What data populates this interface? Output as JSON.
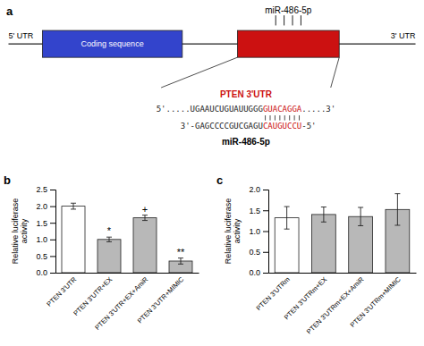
{
  "chart_data": [
    {
      "type": "diagram",
      "title": "a",
      "annotations": [
        "5' UTR",
        "3' UTR",
        "Coding sequence",
        "miR-486-5p",
        "PTEN 3'UTR",
        "5'.....UGAAUCUGUAUUGGG",
        "GUACAGGA",
        ".....3'",
        "3'-GAGCCCCGUCGAGU",
        "CAUGUCCU",
        "-5'",
        "miR-486-5p"
      ],
      "colors": [
        "#3344cc",
        "#cc1111"
      ]
    },
    {
      "type": "bar",
      "title": "b",
      "categories": [
        "PTEN 3'UTR",
        "PTEN 3'UTR+EX",
        "PTEN 3'UTR+EX+AmiR",
        "PTEN 3'UTR+MIMIC"
      ],
      "values": [
        2.0,
        1.0,
        1.65,
        0.35
      ],
      "errors": [
        0.09,
        0.07,
        0.08,
        0.09
      ],
      "colors": [
        "white",
        "#b8b8b8",
        "#b8b8b8",
        "#b8b8b8"
      ],
      "ylabel": "Relative luciferase\nactivity",
      "ylim": [
        0,
        2.5
      ],
      "yticks": [
        {
          "value": 0,
          "label": "0.0"
        },
        0.5,
        {
          "value": 1,
          "label": "1.0"
        },
        1.5,
        {
          "value": 2,
          "label": "2.0"
        },
        2.5
      ],
      "annotations": [
        null,
        "*",
        "+",
        "**"
      ]
    },
    {
      "type": "bar",
      "title": "c",
      "categories": [
        "PTEN 3'UTRm",
        "PTEN 3'UTRm+EX",
        "PTEN 3'UTRm+EX+AmiR",
        "PTEN 3'UTRm+MIMIC"
      ],
      "values": [
        1.32,
        1.4,
        1.35,
        1.52
      ],
      "errors": [
        0.27,
        0.18,
        0.22,
        0.38
      ],
      "colors": [
        "white",
        "#b8b8b8",
        "#b8b8b8",
        "#b8b8b8"
      ],
      "ylabel": "Relative luciferase\nactivity",
      "ylim": [
        0,
        2.0
      ],
      "yticks": [
        {
          "value": 0,
          "label": "0.0"
        },
        0.5,
        {
          "value": 1,
          "label": "1.0"
        },
        1.5,
        {
          "value": 2,
          "label": "2.0"
        }
      ]
    }
  ]
}
